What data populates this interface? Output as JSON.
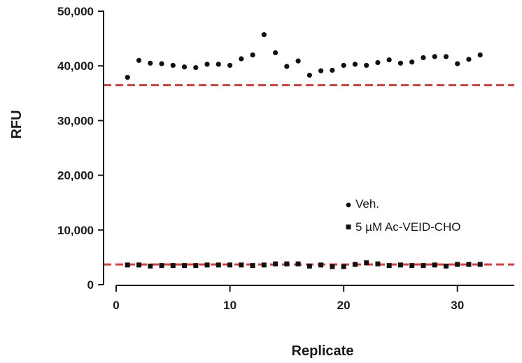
{
  "chart_data": {
    "type": "scatter",
    "title": "",
    "xlabel": "Replicate",
    "ylabel": "RFU",
    "xlim": [
      0,
      35
    ],
    "ylim": [
      0,
      50000
    ],
    "x_ticks": [
      0,
      10,
      20,
      30
    ],
    "x_tick_labels": [
      "0",
      "10",
      "20",
      "30"
    ],
    "y_ticks": [
      0,
      10000,
      20000,
      30000,
      40000,
      50000
    ],
    "y_tick_labels": [
      "0",
      "10,000",
      "20,000",
      "30,000",
      "40,000",
      "50,000"
    ],
    "grid": false,
    "legend_position": "center-right",
    "series": [
      {
        "name": "Veh.",
        "marker": "circle",
        "color": "#111111",
        "x": [
          1,
          2,
          3,
          4,
          5,
          6,
          7,
          8,
          9,
          10,
          11,
          12,
          13,
          14,
          15,
          16,
          17,
          18,
          19,
          20,
          21,
          22,
          23,
          24,
          25,
          26,
          27,
          28,
          29,
          30,
          31,
          32
        ],
        "y": [
          37900,
          41000,
          40500,
          40400,
          40100,
          39800,
          39700,
          40300,
          40300,
          40100,
          41300,
          42000,
          45700,
          42400,
          39900,
          40900,
          38300,
          39100,
          39200,
          40100,
          40300,
          40100,
          40600,
          41100,
          40500,
          40700,
          41500,
          41700,
          41700,
          40400,
          41200,
          42000
        ]
      },
      {
        "name": "5 µM Ac-VEID-CHO",
        "marker": "square",
        "color": "#111111",
        "x": [
          1,
          2,
          3,
          4,
          5,
          6,
          7,
          8,
          9,
          10,
          11,
          12,
          13,
          14,
          15,
          16,
          17,
          18,
          19,
          20,
          21,
          22,
          23,
          24,
          25,
          26,
          27,
          28,
          29,
          30,
          31,
          32
        ],
        "y": [
          3600,
          3600,
          3400,
          3500,
          3500,
          3500,
          3500,
          3600,
          3600,
          3600,
          3600,
          3500,
          3600,
          3800,
          3800,
          3800,
          3400,
          3600,
          3300,
          3300,
          3700,
          4000,
          3800,
          3500,
          3600,
          3500,
          3500,
          3600,
          3400,
          3700,
          3700,
          3700
        ]
      }
    ],
    "reference_lines": [
      {
        "y": 36500,
        "color": "#e03a3a",
        "style": "dashed"
      },
      {
        "y": 3700,
        "color": "#e03a3a",
        "style": "dashed"
      }
    ]
  }
}
